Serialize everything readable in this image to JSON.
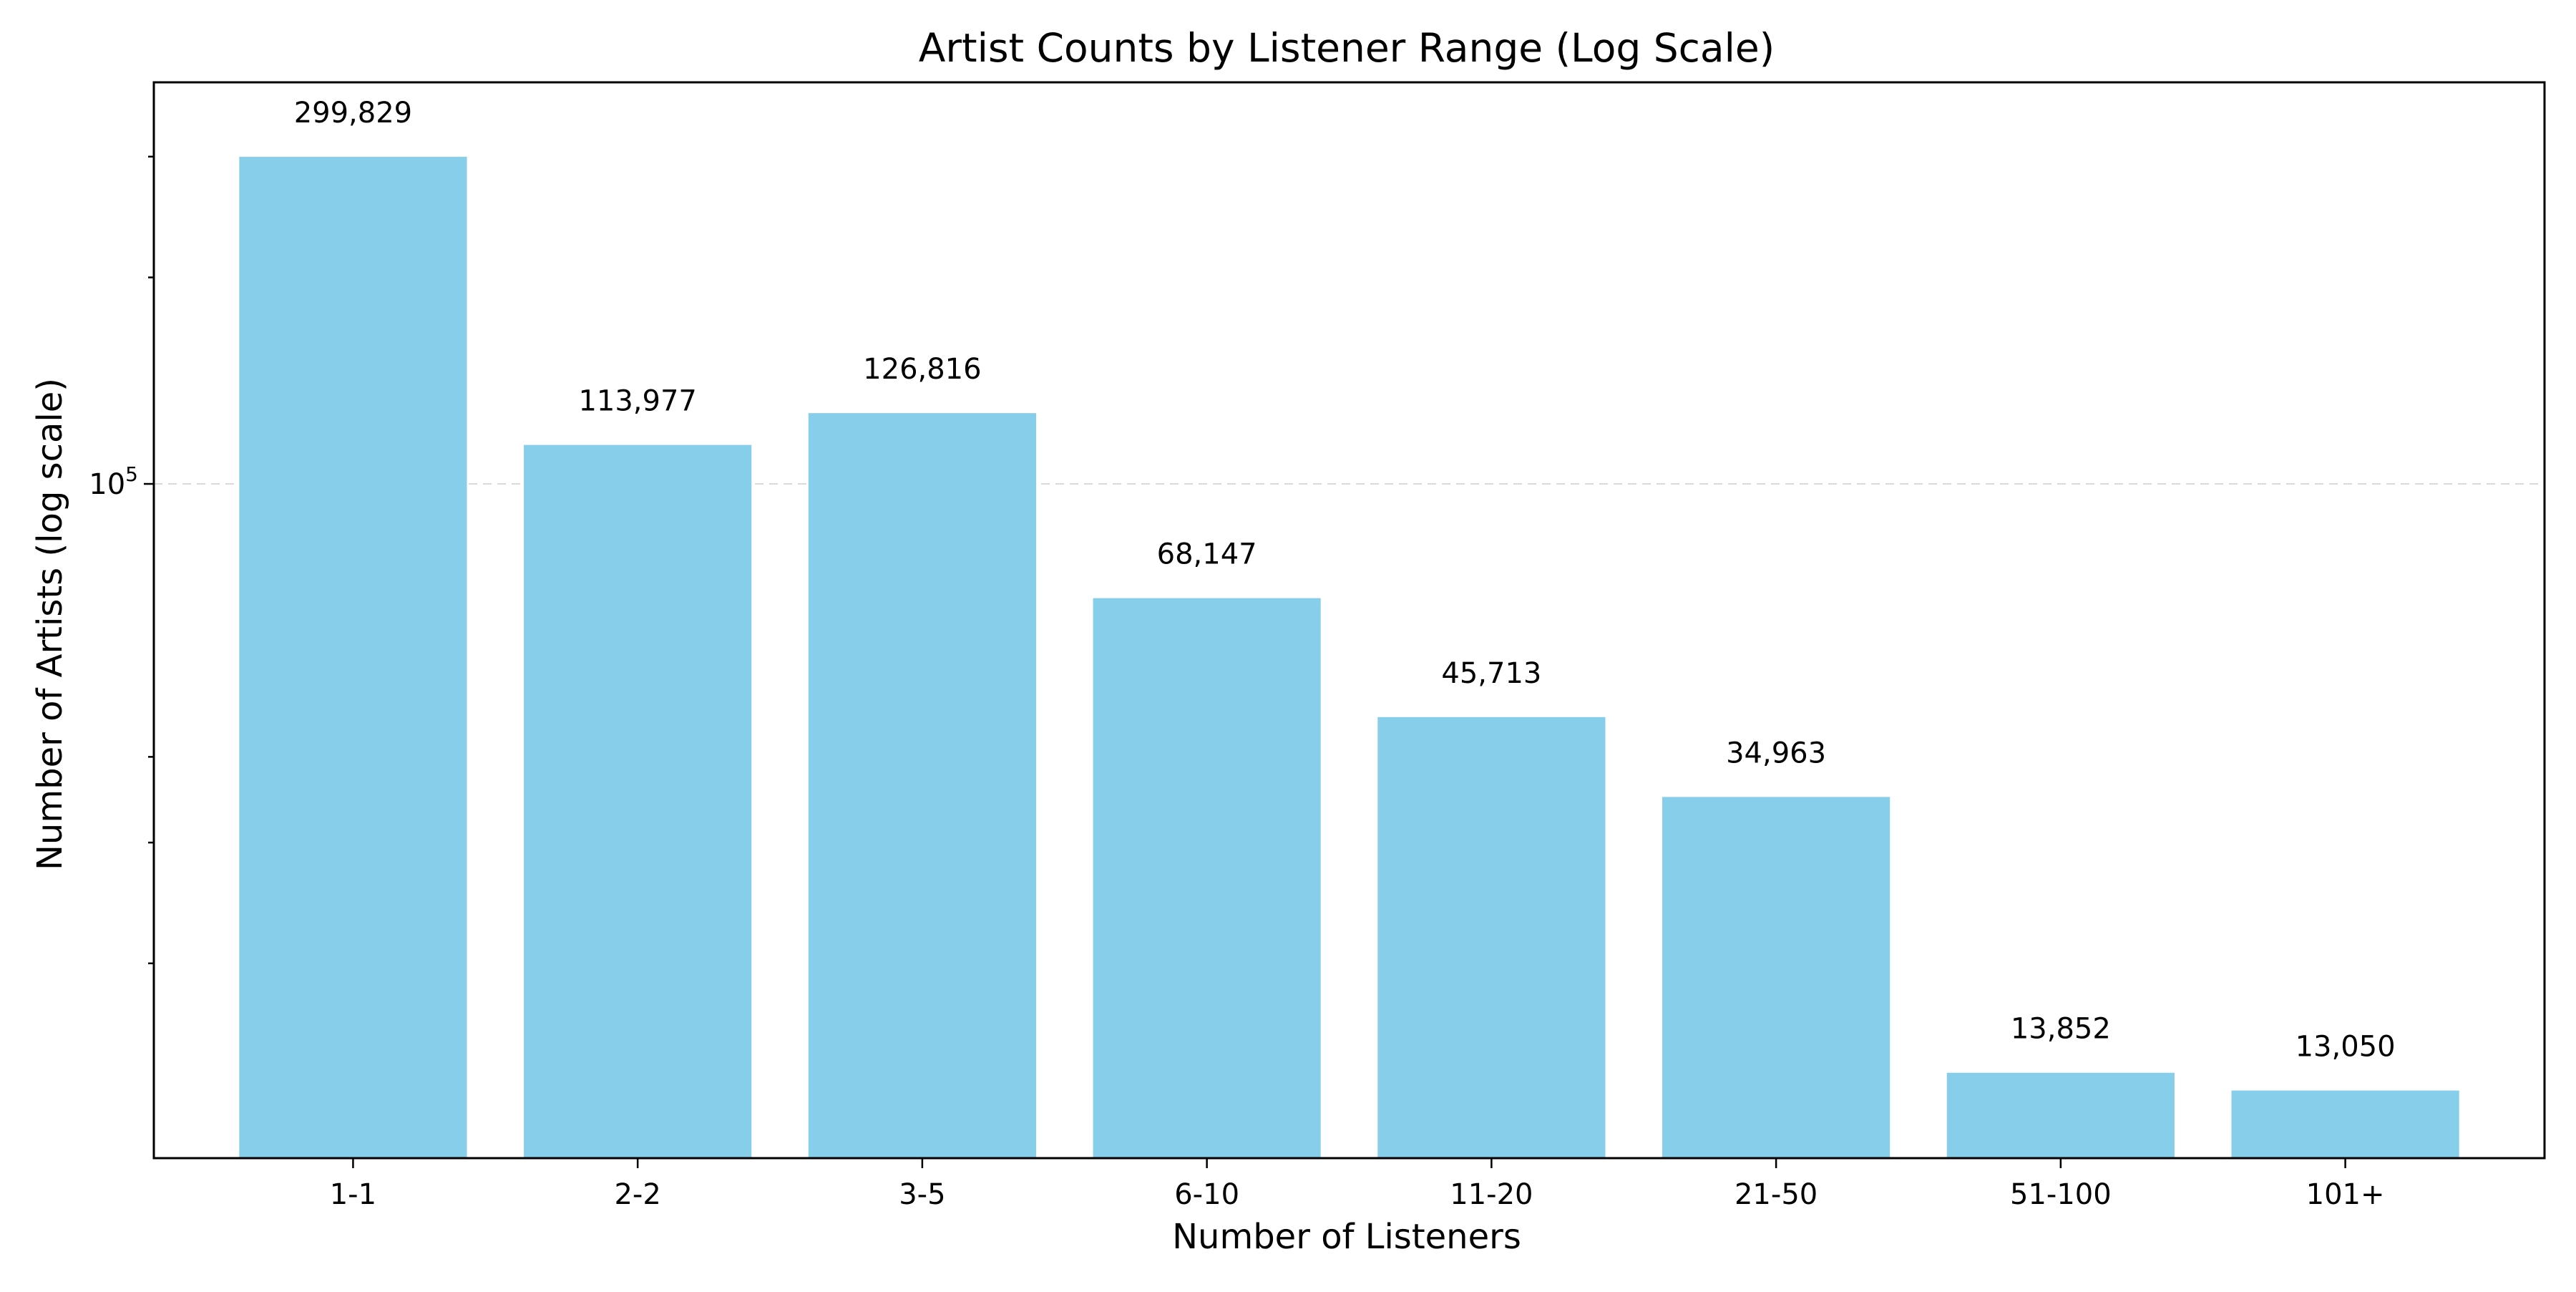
{
  "chart_data": {
    "type": "bar",
    "title": "Artist Counts by Listener Range (Log Scale)",
    "xlabel": "Number of Listeners",
    "ylabel": "Number of Artists (log scale)",
    "categories": [
      "1-1",
      "2-2",
      "3-5",
      "6-10",
      "11-20",
      "21-50",
      "51-100",
      "101+"
    ],
    "values": [
      299829,
      113977,
      126816,
      68147,
      45713,
      34963,
      13852,
      13050
    ],
    "value_labels": [
      "299,829",
      "113,977",
      "126,816",
      "68,147",
      "45,713",
      "34,963",
      "13,852",
      "13,050"
    ],
    "y_scale": "log",
    "ylim": [
      10400,
      385000
    ],
    "y_major_ticks": [
      {
        "value": 100000,
        "base": "10",
        "exp": "5"
      }
    ],
    "y_minor_ticks": [
      20000,
      30000,
      40000,
      200000,
      300000
    ],
    "grid": "y-major dashed",
    "bar_color": "#87CEEB",
    "legend": "none"
  }
}
